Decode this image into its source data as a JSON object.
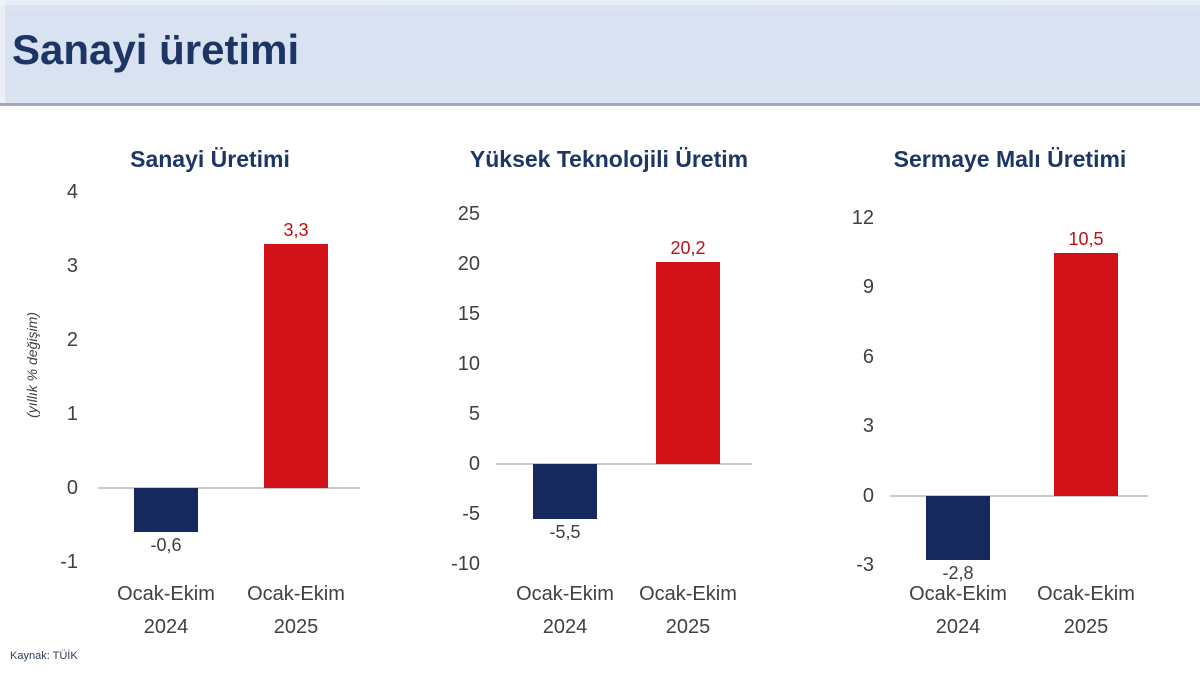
{
  "header": {
    "title": "Sanayi üretimi"
  },
  "source": {
    "label": "Kaynak: TÜİK"
  },
  "colors": {
    "header_bg": "#d9e2f0",
    "title_navy": "#1c3564",
    "navy": "#16295f",
    "red": "#d01117",
    "value_positive": "#c00f15",
    "value_negative": "#404040",
    "axis_text": "#404040",
    "zero_line": "#c9c9c9"
  },
  "chart_data": [
    {
      "type": "bar",
      "title": "Sanayi Üretimi",
      "ylabel": "(yıllık % değişim)",
      "xlabel": "",
      "categories": [
        "Ocak-Ekim 2024",
        "Ocak-Ekim 2025"
      ],
      "values": [
        -0.6,
        3.3
      ],
      "value_labels": [
        "-0,6",
        "3,3"
      ],
      "bar_colors": [
        "navy",
        "red"
      ],
      "yticks": [
        4,
        3,
        2,
        1,
        0,
        -1
      ],
      "ylim": [
        -1,
        4
      ],
      "grid": false,
      "legend": null
    },
    {
      "type": "bar",
      "title": "Yüksek Teknolojili Üretim",
      "ylabel": "",
      "xlabel": "",
      "categories": [
        "Ocak-Ekim 2024",
        "Ocak-Ekim 2025"
      ],
      "values": [
        -5.5,
        20.2
      ],
      "value_labels": [
        "-5,5",
        "20,2"
      ],
      "bar_colors": [
        "navy",
        "red"
      ],
      "yticks": [
        25,
        20,
        15,
        10,
        5,
        0,
        -5,
        -10
      ],
      "ylim": [
        -10,
        25
      ],
      "grid": false,
      "legend": null
    },
    {
      "type": "bar",
      "title": "Sermaye Malı Üretimi",
      "ylabel": "",
      "xlabel": "",
      "categories": [
        "Ocak-Ekim 2024",
        "Ocak-Ekim 2025"
      ],
      "values": [
        -2.8,
        10.5
      ],
      "value_labels": [
        "-2,8",
        "10,5"
      ],
      "bar_colors": [
        "navy",
        "red"
      ],
      "yticks": [
        12,
        9,
        6,
        3,
        0,
        -3
      ],
      "ylim": [
        -3,
        12
      ],
      "grid": false,
      "legend": null
    }
  ]
}
